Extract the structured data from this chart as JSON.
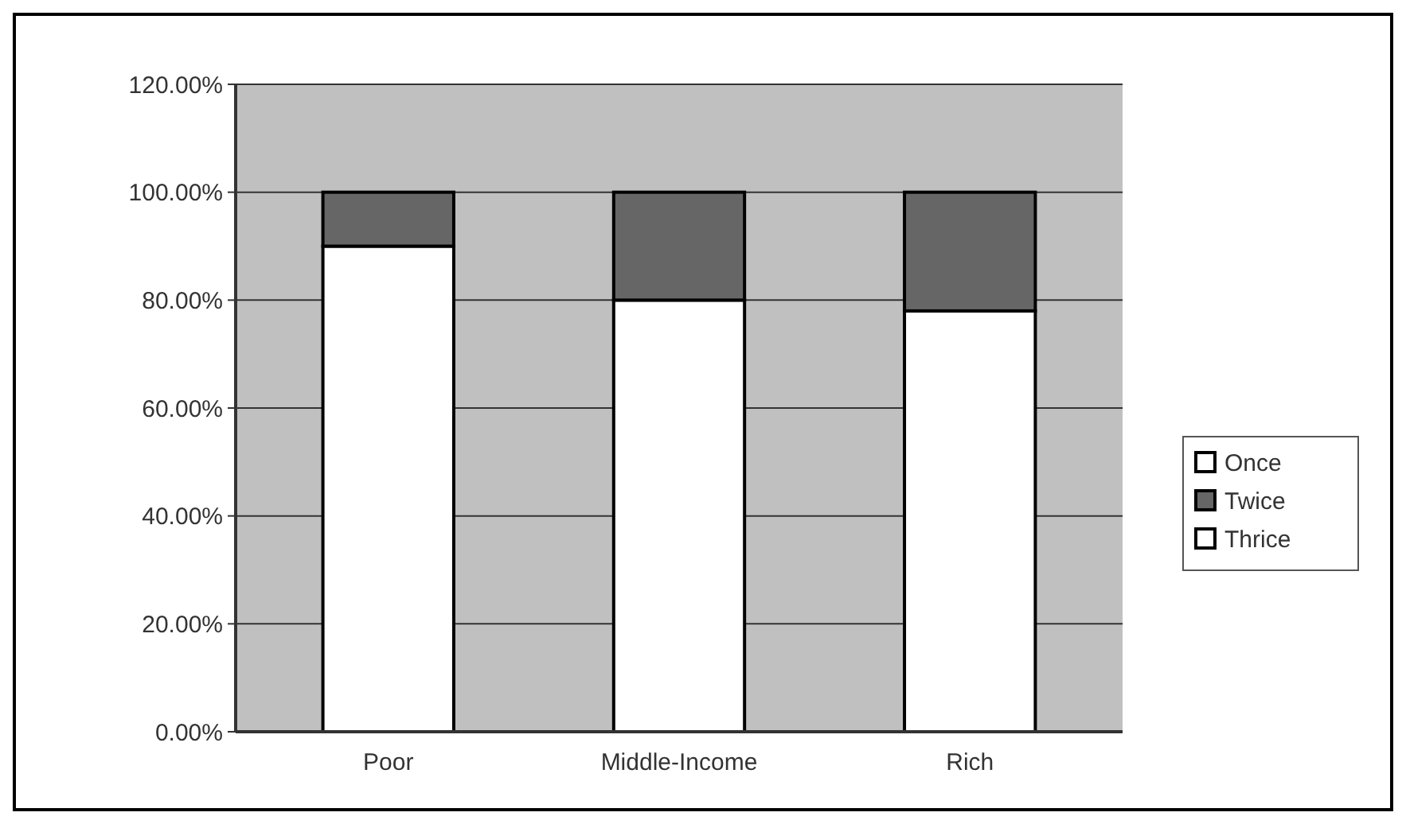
{
  "chart_data": {
    "type": "bar",
    "stacked": true,
    "categories": [
      "Poor",
      "Middle-Income",
      "Rich"
    ],
    "series": [
      {
        "name": "Once",
        "color": "#ffffff",
        "values": [
          90,
          80,
          78
        ]
      },
      {
        "name": "Twice",
        "color": "#666666",
        "values": [
          10,
          20,
          22
        ]
      },
      {
        "name": "Thrice",
        "color": "#ffffff",
        "values": [
          0,
          0,
          0
        ]
      }
    ],
    "ylim": [
      0,
      120
    ],
    "yticks": [
      {
        "value": 0,
        "label": "0.00%"
      },
      {
        "value": 20,
        "label": "20.00%"
      },
      {
        "value": 40,
        "label": "40.00%"
      },
      {
        "value": 60,
        "label": "60.00%"
      },
      {
        "value": 80,
        "label": "80.00%"
      },
      {
        "value": 100,
        "label": "100.00%"
      },
      {
        "value": 120,
        "label": "120.00%"
      }
    ],
    "grid": "y",
    "legend": "right"
  }
}
